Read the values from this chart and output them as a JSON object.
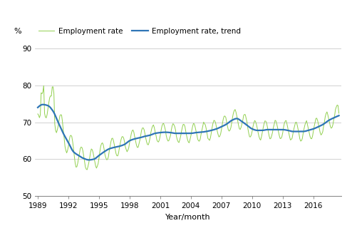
{
  "title": "",
  "ylabel": "%",
  "xlabel": "Year/month",
  "ylim": [
    50,
    92
  ],
  "yticks": [
    50,
    60,
    70,
    80,
    90
  ],
  "xlim_start": 1988.75,
  "xlim_end": 2018.75,
  "xticks": [
    1989,
    1992,
    1995,
    1998,
    2001,
    2004,
    2007,
    2010,
    2013,
    2016
  ],
  "employment_rate_color": "#92d050",
  "trend_color": "#2e75b6",
  "employment_rate_lw": 0.7,
  "trend_lw": 1.6,
  "legend_labels": [
    "Employment rate",
    "Employment rate, trend"
  ],
  "grid_color": "#bfbfbf",
  "grid_lw": 0.5,
  "figsize": [
    4.94,
    3.2
  ],
  "dpi": 100,
  "trend_keypoints": [
    [
      1989.0,
      74.0
    ],
    [
      1989.5,
      74.8
    ],
    [
      1990.0,
      74.5
    ],
    [
      1990.5,
      73.0
    ],
    [
      1991.0,
      70.0
    ],
    [
      1991.5,
      67.0
    ],
    [
      1992.0,
      64.5
    ],
    [
      1992.5,
      62.0
    ],
    [
      1993.0,
      61.0
    ],
    [
      1993.5,
      60.2
    ],
    [
      1994.0,
      59.8
    ],
    [
      1994.5,
      60.0
    ],
    [
      1995.0,
      61.0
    ],
    [
      1995.5,
      62.0
    ],
    [
      1996.0,
      62.8
    ],
    [
      1996.5,
      63.2
    ],
    [
      1997.0,
      63.5
    ],
    [
      1997.5,
      64.0
    ],
    [
      1998.0,
      65.0
    ],
    [
      1998.5,
      65.5
    ],
    [
      1999.0,
      65.8
    ],
    [
      1999.5,
      66.2
    ],
    [
      2000.0,
      66.5
    ],
    [
      2000.5,
      67.0
    ],
    [
      2001.0,
      67.2
    ],
    [
      2001.5,
      67.3
    ],
    [
      2002.0,
      67.2
    ],
    [
      2002.5,
      67.0
    ],
    [
      2003.0,
      67.0
    ],
    [
      2003.5,
      67.0
    ],
    [
      2004.0,
      67.0
    ],
    [
      2004.5,
      67.2
    ],
    [
      2005.0,
      67.3
    ],
    [
      2005.5,
      67.5
    ],
    [
      2006.0,
      67.8
    ],
    [
      2006.5,
      68.2
    ],
    [
      2007.0,
      68.8
    ],
    [
      2007.5,
      69.5
    ],
    [
      2008.0,
      70.5
    ],
    [
      2008.5,
      71.0
    ],
    [
      2009.0,
      70.2
    ],
    [
      2009.5,
      69.2
    ],
    [
      2010.0,
      68.2
    ],
    [
      2010.5,
      67.8
    ],
    [
      2011.0,
      67.8
    ],
    [
      2011.5,
      68.0
    ],
    [
      2012.0,
      68.0
    ],
    [
      2012.5,
      68.0
    ],
    [
      2013.0,
      68.0
    ],
    [
      2013.5,
      67.8
    ],
    [
      2014.0,
      67.5
    ],
    [
      2014.5,
      67.5
    ],
    [
      2015.0,
      67.5
    ],
    [
      2015.5,
      67.8
    ],
    [
      2016.0,
      68.2
    ],
    [
      2016.5,
      68.8
    ],
    [
      2017.0,
      69.5
    ],
    [
      2017.5,
      70.5
    ],
    [
      2018.0,
      71.2
    ],
    [
      2018.5,
      71.8
    ]
  ]
}
